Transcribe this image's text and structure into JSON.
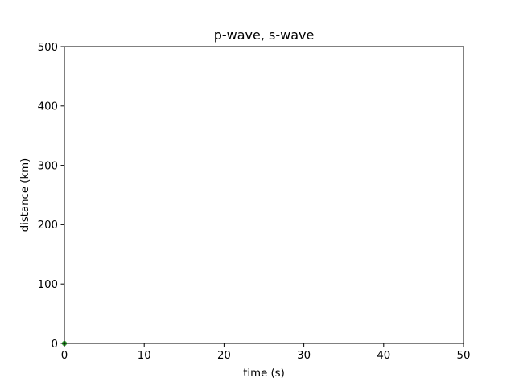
{
  "chart_data": {
    "type": "line",
    "title": "p-wave, s-wave",
    "xlabel": "time (s)",
    "ylabel": "distance (km)",
    "xlim": [
      0,
      50
    ],
    "ylim": [
      0,
      500
    ],
    "xticks": [
      0,
      10,
      20,
      30,
      40,
      50
    ],
    "yticks": [
      0,
      100,
      200,
      300,
      400,
      500
    ],
    "grid": false,
    "series": [
      {
        "color": "#2ca02c",
        "marker": "circle",
        "x": [
          0
        ],
        "y": [
          0
        ]
      }
    ]
  }
}
